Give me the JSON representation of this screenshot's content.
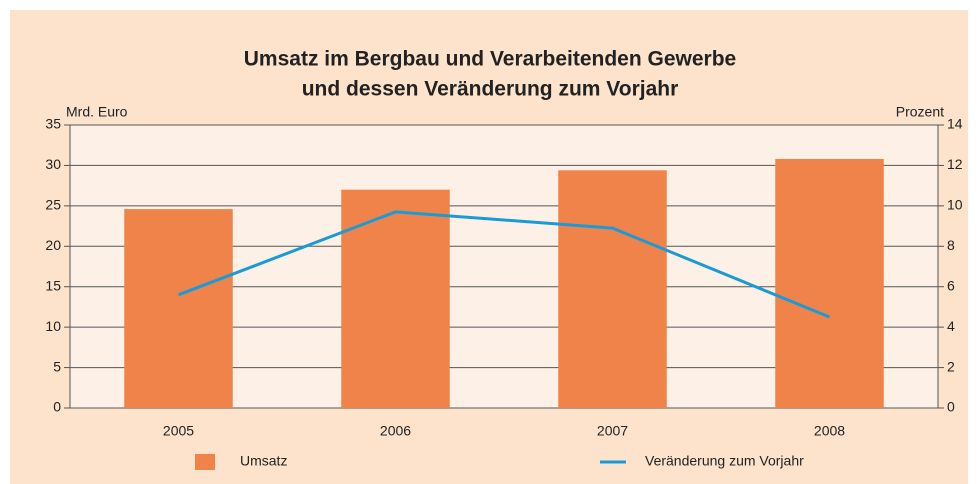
{
  "chart_data": {
    "type": "bar",
    "title": "Umsatz im Bergbau und Verarbeitenden Gewerbe",
    "subtitle": "und dessen Veränderung zum Vorjahr",
    "ylabel": "Mrd. Euro",
    "y2label": "Prozent",
    "categories": [
      "2005",
      "2006",
      "2007",
      "2008"
    ],
    "series": [
      {
        "name": "Umsatz",
        "type": "bar",
        "color": "#f0834a",
        "values": [
          24.6,
          27.0,
          29.4,
          30.8
        ]
      },
      {
        "name": "Veränderung zum Vorjahr",
        "type": "line",
        "axis": "y2",
        "color": "#1a9bd7",
        "values": [
          5.6,
          9.7,
          8.9,
          4.5
        ]
      }
    ],
    "ylim": [
      0,
      35
    ],
    "yticks": [
      0,
      5,
      10,
      15,
      20,
      25,
      30,
      35
    ],
    "y2lim": [
      0,
      14
    ],
    "y2ticks": [
      0,
      2,
      4,
      6,
      8,
      10,
      12,
      14
    ],
    "grid": true,
    "legend": "bottom"
  }
}
